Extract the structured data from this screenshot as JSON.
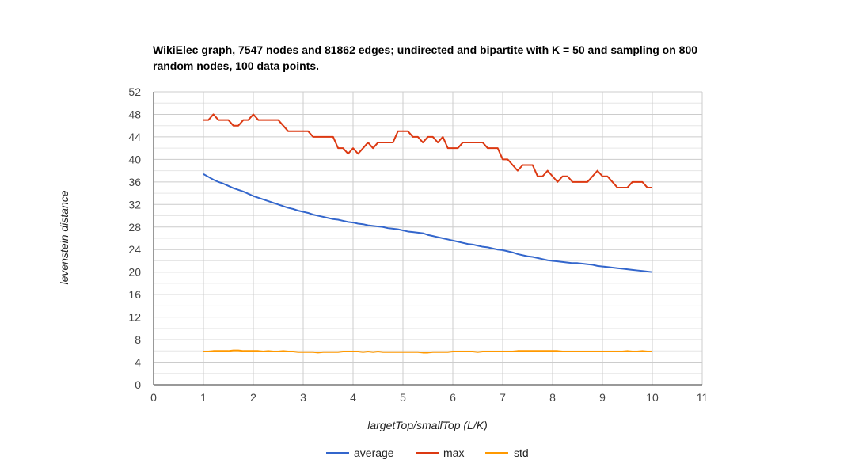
{
  "chart_data": {
    "type": "line",
    "title": "WikiElec graph,  7547 nodes and 81862 edges; undirected and bipartite with K = 50 and sampling on 800 random nodes, 100 data points.",
    "xlabel": "largetTop/smallTop (L/K)",
    "ylabel": "levenstein distance",
    "xlim": [
      0,
      11
    ],
    "ylim": [
      0,
      52
    ],
    "x_ticks": [
      0,
      1,
      2,
      3,
      4,
      5,
      6,
      7,
      8,
      9,
      10,
      11
    ],
    "y_ticks": [
      0,
      4,
      8,
      12,
      16,
      20,
      24,
      28,
      32,
      36,
      40,
      44,
      48,
      52
    ],
    "grid": true,
    "legend_position": "bottom",
    "x": [
      1,
      1.1,
      1.2,
      1.3,
      1.4,
      1.5,
      1.6,
      1.7,
      1.8,
      1.9,
      2,
      2.1,
      2.2,
      2.3,
      2.4,
      2.5,
      2.6,
      2.7,
      2.8,
      2.9,
      3,
      3.1,
      3.2,
      3.3,
      3.4,
      3.5,
      3.6,
      3.7,
      3.8,
      3.9,
      4,
      4.1,
      4.2,
      4.3,
      4.4,
      4.5,
      4.6,
      4.7,
      4.8,
      4.9,
      5,
      5.1,
      5.2,
      5.3,
      5.4,
      5.5,
      5.6,
      5.7,
      5.8,
      5.9,
      6,
      6.1,
      6.2,
      6.3,
      6.4,
      6.5,
      6.6,
      6.7,
      6.8,
      6.9,
      7,
      7.1,
      7.2,
      7.3,
      7.4,
      7.5,
      7.6,
      7.7,
      7.8,
      7.9,
      8,
      8.1,
      8.2,
      8.3,
      8.4,
      8.5,
      8.6,
      8.7,
      8.8,
      8.9,
      9,
      9.1,
      9.2,
      9.3,
      9.4,
      9.5,
      9.6,
      9.7,
      9.8,
      9.9,
      10
    ],
    "series": [
      {
        "name": "average",
        "color": "#3366cc",
        "values": [
          37.4,
          36.9,
          36.4,
          36.0,
          35.7,
          35.3,
          34.9,
          34.6,
          34.3,
          33.9,
          33.5,
          33.2,
          32.9,
          32.6,
          32.3,
          32.0,
          31.7,
          31.4,
          31.2,
          30.9,
          30.7,
          30.5,
          30.2,
          30.0,
          29.8,
          29.6,
          29.4,
          29.3,
          29.1,
          28.9,
          28.8,
          28.6,
          28.5,
          28.3,
          28.2,
          28.1,
          28.0,
          27.8,
          27.7,
          27.6,
          27.4,
          27.2,
          27.1,
          27.0,
          26.9,
          26.6,
          26.4,
          26.2,
          26.0,
          25.8,
          25.6,
          25.4,
          25.2,
          25.0,
          24.9,
          24.7,
          24.5,
          24.4,
          24.2,
          24.0,
          23.9,
          23.7,
          23.5,
          23.2,
          23.0,
          22.8,
          22.7,
          22.5,
          22.3,
          22.1,
          22.0,
          21.9,
          21.8,
          21.7,
          21.6,
          21.6,
          21.5,
          21.4,
          21.3,
          21.1,
          21.0,
          20.9,
          20.8,
          20.7,
          20.6,
          20.5,
          20.4,
          20.3,
          20.2,
          20.1,
          20.0
        ]
      },
      {
        "name": "max",
        "color": "#dc3912",
        "values": [
          47,
          47,
          48,
          47,
          47,
          47,
          46,
          46,
          47,
          47,
          48,
          47,
          47,
          47,
          47,
          47,
          46,
          45,
          45,
          45,
          45,
          45,
          44,
          44,
          44,
          44,
          44,
          42,
          42,
          41,
          42,
          41,
          42,
          43,
          42,
          43,
          43,
          43,
          43,
          45,
          45,
          45,
          44,
          44,
          43,
          44,
          44,
          43,
          44,
          42,
          42,
          42,
          43,
          43,
          43,
          43,
          43,
          42,
          42,
          42,
          40,
          40,
          39,
          38,
          39,
          39,
          39,
          37,
          37,
          38,
          37,
          36,
          37,
          37,
          36,
          36,
          36,
          36,
          37,
          38,
          37,
          37,
          36,
          35,
          35,
          35,
          36,
          36,
          36,
          35,
          35
        ]
      },
      {
        "name": "std",
        "color": "#ff9900",
        "values": [
          5.9,
          5.9,
          6.0,
          6.0,
          6.0,
          6.0,
          6.1,
          6.1,
          6.0,
          6.0,
          6.0,
          6.0,
          5.9,
          6.0,
          5.9,
          5.9,
          6.0,
          5.9,
          5.9,
          5.8,
          5.8,
          5.8,
          5.8,
          5.7,
          5.8,
          5.8,
          5.8,
          5.8,
          5.9,
          5.9,
          5.9,
          5.9,
          5.8,
          5.9,
          5.8,
          5.9,
          5.8,
          5.8,
          5.8,
          5.8,
          5.8,
          5.8,
          5.8,
          5.8,
          5.7,
          5.7,
          5.8,
          5.8,
          5.8,
          5.8,
          5.9,
          5.9,
          5.9,
          5.9,
          5.9,
          5.8,
          5.9,
          5.9,
          5.9,
          5.9,
          5.9,
          5.9,
          5.9,
          6.0,
          6.0,
          6.0,
          6.0,
          6.0,
          6.0,
          6.0,
          6.0,
          6.0,
          5.9,
          5.9,
          5.9,
          5.9,
          5.9,
          5.9,
          5.9,
          5.9,
          5.9,
          5.9,
          5.9,
          5.9,
          5.9,
          6.0,
          5.9,
          5.9,
          6.0,
          5.9,
          5.9
        ]
      }
    ]
  }
}
